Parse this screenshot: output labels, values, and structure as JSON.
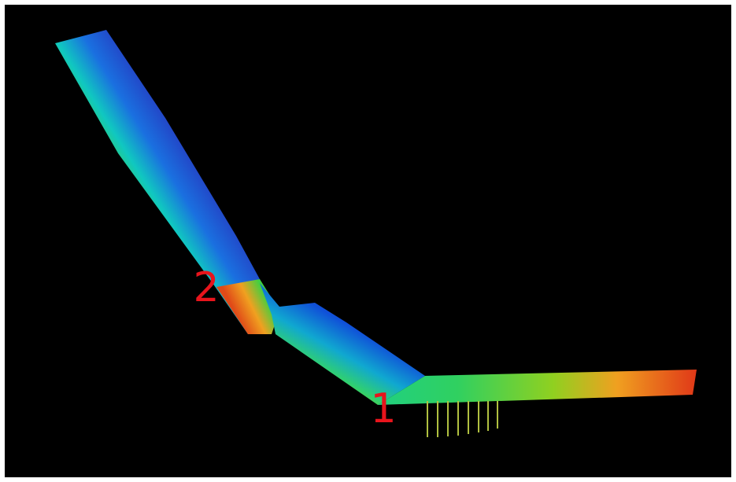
{
  "annotations": [
    {
      "label": "2"
    },
    {
      "label": "1"
    }
  ]
}
